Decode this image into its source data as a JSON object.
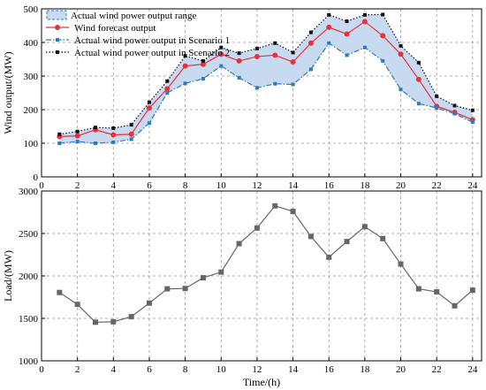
{
  "chart_data": [
    {
      "type": "line",
      "x": [
        1,
        2,
        3,
        4,
        5,
        6,
        7,
        8,
        9,
        10,
        11,
        12,
        13,
        14,
        15,
        16,
        17,
        18,
        19,
        20,
        21,
        22,
        23,
        24
      ],
      "xlim": [
        0,
        24.5
      ],
      "ylim": [
        0,
        500
      ],
      "xticks": [
        "0",
        "2",
        "4",
        "6",
        "8",
        "10",
        "12",
        "14",
        "16",
        "18",
        "20",
        "22",
        "24"
      ],
      "yticks": [
        "0",
        "100",
        "200",
        "300",
        "400",
        "500"
      ],
      "ylabel": "Wind output/(MW)",
      "grid": true,
      "legend_position": "top-left",
      "range_label": "Actual wind power output range",
      "series": [
        {
          "name": "Wind  forecast output",
          "color": "#e8303a",
          "marker": "circle",
          "values": [
            120,
            122,
            140,
            125,
            127,
            205,
            262,
            330,
            335,
            365,
            345,
            358,
            362,
            342,
            398,
            445,
            425,
            462,
            420,
            365,
            290,
            210,
            192,
            170
          ]
        },
        {
          "name": "Actual wind power output in Scenario 1",
          "color": "#2a7bc0",
          "marker": "square",
          "dash": "dash-dot",
          "values": [
            100,
            105,
            100,
            103,
            112,
            160,
            250,
            278,
            292,
            330,
            295,
            265,
            277,
            275,
            320,
            398,
            362,
            385,
            345,
            260,
            218,
            205,
            188,
            163
          ]
        },
        {
          "name": "Actual wind power output in Scenario 2",
          "color": "#111111",
          "marker": "square",
          "dash": "dotted",
          "values": [
            127,
            135,
            147,
            145,
            155,
            222,
            285,
            360,
            345,
            385,
            368,
            382,
            398,
            370,
            430,
            482,
            463,
            482,
            483,
            390,
            340,
            240,
            212,
            198
          ]
        }
      ]
    },
    {
      "type": "line",
      "x": [
        1,
        2,
        3,
        4,
        5,
        6,
        7,
        8,
        9,
        10,
        11,
        12,
        13,
        14,
        15,
        16,
        17,
        18,
        19,
        20,
        21,
        22,
        23,
        24
      ],
      "xlim": [
        0,
        24.5
      ],
      "ylim": [
        1000,
        3000
      ],
      "xticks": [
        "0",
        "2",
        "4",
        "6",
        "8",
        "10",
        "12",
        "14",
        "16",
        "18",
        "20",
        "22",
        "24"
      ],
      "yticks": [
        "1000",
        "1500",
        "2000",
        "2500",
        "3000"
      ],
      "xlabel": "Time/(h)",
      "ylabel": "Load/(MW)",
      "grid": true,
      "series": [
        {
          "color": "#666666",
          "marker": "square",
          "values": [
            1805,
            1665,
            1455,
            1460,
            1520,
            1680,
            1848,
            1852,
            1978,
            2045,
            2380,
            2565,
            2825,
            2760,
            2465,
            2220,
            2405,
            2580,
            2440,
            2140,
            1848,
            1812,
            1648,
            1832
          ]
        }
      ]
    }
  ]
}
